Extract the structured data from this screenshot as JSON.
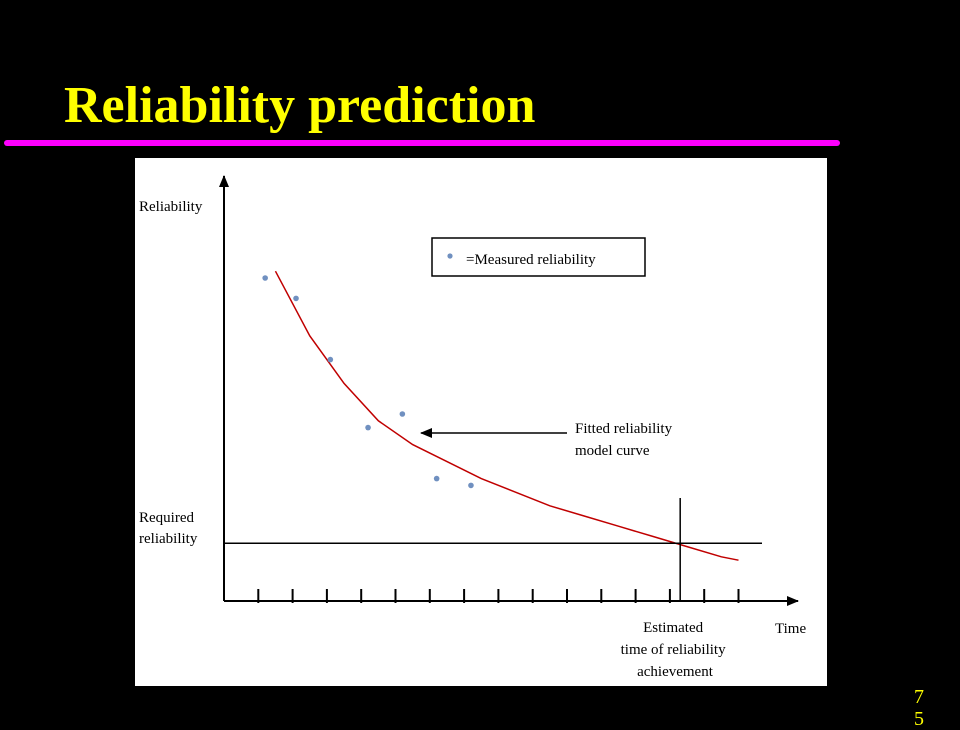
{
  "slide": {
    "title": "Reliability prediction",
    "page_number": "75",
    "title_color": "#ffff00",
    "rule_color": "#ff00ff",
    "background": "#000000"
  },
  "chart_data": {
    "type": "scatter",
    "ylabel": "Reliability",
    "xlabel": "Time",
    "legend": {
      "label": "=Measured reliability",
      "placement": "top-right"
    },
    "series": [
      {
        "kind": "measured-points",
        "color": "#7090c0",
        "points": [
          [
            1.2,
            9.5
          ],
          [
            2.1,
            8.9
          ],
          [
            3.1,
            7.1
          ],
          [
            4.2,
            5.1
          ],
          [
            5.2,
            5.5
          ],
          [
            6.2,
            3.6
          ],
          [
            7.2,
            3.4
          ]
        ]
      },
      {
        "kind": "fitted-curve",
        "color": "#c00000",
        "points": [
          [
            1.5,
            9.7
          ],
          [
            2.5,
            7.8
          ],
          [
            3.5,
            6.4
          ],
          [
            4.5,
            5.3
          ],
          [
            5.5,
            4.6
          ],
          [
            6.5,
            4.1
          ],
          [
            7.5,
            3.6
          ],
          [
            8.5,
            3.2
          ],
          [
            9.5,
            2.8
          ],
          [
            10.5,
            2.5
          ],
          [
            11.5,
            2.2
          ],
          [
            12.5,
            1.9
          ],
          [
            13.5,
            1.6
          ],
          [
            14.5,
            1.3
          ],
          [
            15.0,
            1.2
          ]
        ]
      }
    ],
    "required_reliability": {
      "label_lines": [
        "Required",
        "reliability"
      ],
      "value": 1.7
    },
    "estimated_time": {
      "label_lines": [
        "Estimated",
        "time of reliability",
        "achievement"
      ],
      "value": 13.3
    },
    "curve_annotation": {
      "label_lines": [
        "Fitted reliability",
        "model curve"
      ]
    },
    "axis_ranges": {
      "x": [
        0,
        16.5
      ],
      "y": [
        0,
        10.5
      ]
    },
    "x_ticks": [
      1,
      2,
      3,
      4,
      5,
      6,
      7,
      8,
      9,
      10,
      11,
      12,
      13,
      14,
      15
    ],
    "grid": false
  }
}
